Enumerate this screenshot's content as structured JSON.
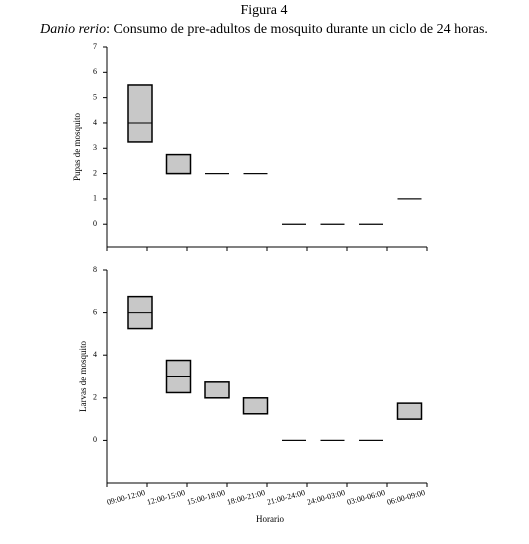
{
  "figure": {
    "title": "Figura 4",
    "subtitle_species": "Danio rerio",
    "subtitle_text": ": Consumo de pre-adultos de mosquito durante un ciclo de 24 horas."
  },
  "chart_data": [
    {
      "type": "box",
      "ylabel": "Pupas de mosquito",
      "color": "#c8c8c8",
      "lows": [
        3.25,
        2,
        2,
        2,
        0,
        0,
        0,
        1
      ],
      "medians": [
        4,
        2,
        2,
        2,
        0,
        0,
        0,
        1
      ],
      "highs": [
        5.5,
        2.75,
        2,
        2,
        0,
        0,
        0,
        1
      ],
      "ylim": [
        -0.9,
        7
      ],
      "yticks": [
        0,
        1,
        2,
        3,
        4,
        5,
        6,
        7
      ]
    },
    {
      "type": "box",
      "ylabel": "Larvas de mosquito",
      "xlabel": "Horario",
      "color": "#c8c8c8",
      "categories": [
        "09:00-12:00",
        "12:00-15:00",
        "15:00-18:00",
        "18:00-21:00",
        "21:00-24:00",
        "24:00-03:00",
        "03:00-06:00",
        "06:00-09:00"
      ],
      "lows": [
        5.25,
        2.25,
        2,
        1.25,
        0,
        0,
        0,
        1
      ],
      "medians": [
        6,
        3,
        2,
        1.25,
        0,
        0,
        0,
        1
      ],
      "highs": [
        6.75,
        3.75,
        2.75,
        2,
        0,
        0,
        0,
        1.75
      ],
      "ylim": [
        -2,
        8
      ],
      "yticks": [
        0,
        2,
        4,
        6,
        8
      ]
    }
  ]
}
